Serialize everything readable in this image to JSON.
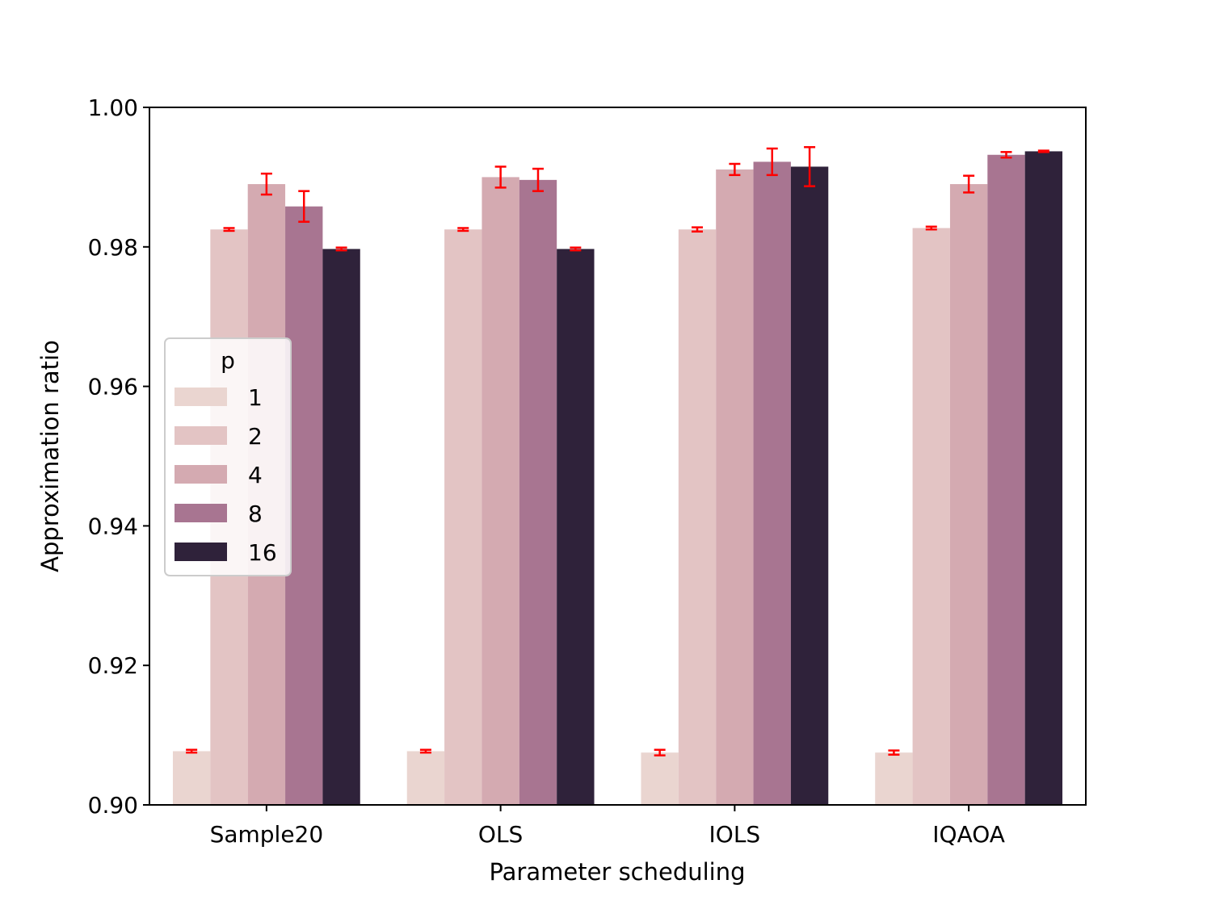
{
  "chart_data": {
    "type": "bar",
    "title": "",
    "xlabel": "Parameter scheduling",
    "ylabel": "Approximation ratio",
    "ylim": [
      0.9,
      1.0
    ],
    "yticks": [
      "0.90",
      "0.92",
      "0.94",
      "0.96",
      "0.98",
      "1.00"
    ],
    "ytick_values": [
      0.9,
      0.92,
      0.94,
      0.96,
      0.98,
      1.0
    ],
    "categories": [
      "Sample20",
      "OLS",
      "IOLS",
      "IQAOA"
    ],
    "legend": {
      "title": "p",
      "location": "center-left"
    },
    "error_bar_color": "#ff0000",
    "series": [
      {
        "name": "1",
        "color": "#ead5d0",
        "values": [
          0.9077,
          0.9077,
          0.9075,
          0.9075
        ],
        "errors": [
          0.0002,
          0.0002,
          0.0004,
          0.0003
        ]
      },
      {
        "name": "2",
        "color": "#e3c4c4",
        "values": [
          0.9825,
          0.9825,
          0.9825,
          0.9827
        ],
        "errors": [
          0.0002,
          0.0002,
          0.0003,
          0.0002
        ]
      },
      {
        "name": "4",
        "color": "#d4aab1",
        "values": [
          0.989,
          0.99,
          0.9911,
          0.989
        ],
        "errors": [
          0.0015,
          0.0015,
          0.0008,
          0.0012
        ]
      },
      {
        "name": "8",
        "color": "#a87591",
        "values": [
          0.9858,
          0.9896,
          0.9922,
          0.9932
        ],
        "errors": [
          0.0022,
          0.0016,
          0.0019,
          0.0004
        ]
      },
      {
        "name": "16",
        "color": "#2f223a",
        "values": [
          0.9797,
          0.9797,
          0.9915,
          0.9937
        ],
        "errors": [
          0.0002,
          0.0002,
          0.0028,
          0.0001
        ]
      }
    ]
  }
}
